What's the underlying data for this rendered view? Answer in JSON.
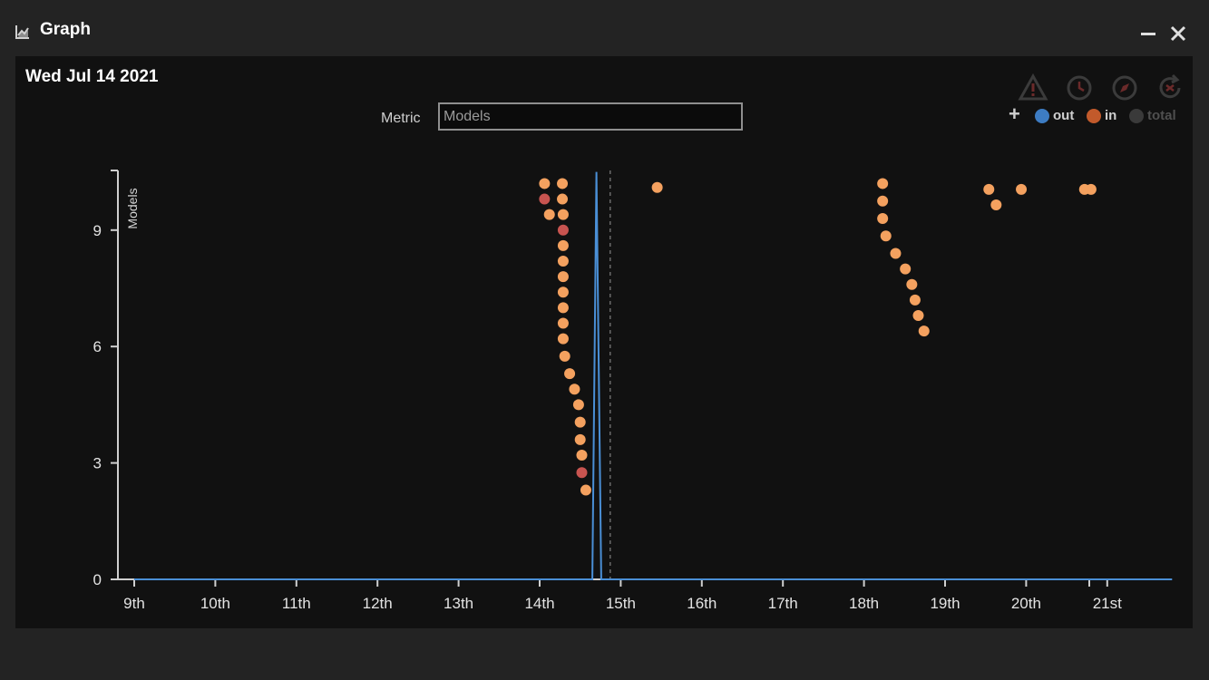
{
  "window": {
    "title": "Graph",
    "icons": [
      "chart-icon",
      "minimize-icon",
      "close-icon"
    ]
  },
  "header": {
    "date": "Wed Jul 14 2021",
    "metric_label": "Metric",
    "metric_value": "Models"
  },
  "toolbar": {
    "icons": [
      "warning-icon",
      "clock-refresh-icon",
      "compass-icon",
      "reload-icon"
    ]
  },
  "legend": {
    "add_symbol": "+",
    "items": [
      {
        "label": "out",
        "color": "#3d7cc3",
        "text_color": "#cfcfcf"
      },
      {
        "label": "in",
        "color": "#c25a2b",
        "text_color": "#cfcfcf"
      },
      {
        "label": "total",
        "color": "#4a4a4a",
        "text_color": "#4f4f4f"
      }
    ]
  },
  "colors": {
    "point": "#f4a15f",
    "point_alt": "#c85450",
    "line": "#4a8fd6",
    "axis": "#cfcfcf"
  },
  "chart_data": {
    "type": "scatter",
    "ylabel": "Models",
    "xlabel": "",
    "ylim": [
      0,
      10.5
    ],
    "xlim": [
      9.0,
      21.8
    ],
    "yticks": [
      0,
      3,
      6,
      9
    ],
    "xticks": [
      {
        "value": 9,
        "label": "9th"
      },
      {
        "value": 10,
        "label": "10th"
      },
      {
        "value": 11,
        "label": "11th"
      },
      {
        "value": 12,
        "label": "12th"
      },
      {
        "value": 13,
        "label": "13th"
      },
      {
        "value": 14,
        "label": "14th"
      },
      {
        "value": 15,
        "label": "15th"
      },
      {
        "value": 16,
        "label": "16th"
      },
      {
        "value": 17,
        "label": "17th"
      },
      {
        "value": 18,
        "label": "18th"
      },
      {
        "value": 19,
        "label": "19th"
      },
      {
        "value": 20,
        "label": "20th"
      },
      {
        "value": 21,
        "label": "21st"
      }
    ],
    "marker_x": 14.87,
    "series": [
      {
        "name": "out",
        "kind": "line",
        "x": [
          9.0,
          14.65,
          14.7,
          14.76,
          21.8
        ],
        "y": [
          0,
          0,
          10.5,
          0,
          0
        ]
      }
    ],
    "points": [
      {
        "x": 14.06,
        "y": 10.2,
        "c": "a"
      },
      {
        "x": 14.28,
        "y": 10.2,
        "c": "a"
      },
      {
        "x": 14.06,
        "y": 9.8,
        "c": "b"
      },
      {
        "x": 14.28,
        "y": 9.8,
        "c": "a"
      },
      {
        "x": 14.12,
        "y": 9.4,
        "c": "a"
      },
      {
        "x": 14.29,
        "y": 9.4,
        "c": "a"
      },
      {
        "x": 14.29,
        "y": 9.0,
        "c": "b"
      },
      {
        "x": 14.29,
        "y": 8.6,
        "c": "a"
      },
      {
        "x": 14.29,
        "y": 8.2,
        "c": "a"
      },
      {
        "x": 14.29,
        "y": 7.8,
        "c": "a"
      },
      {
        "x": 14.29,
        "y": 7.4,
        "c": "a"
      },
      {
        "x": 14.29,
        "y": 7.0,
        "c": "a"
      },
      {
        "x": 14.29,
        "y": 6.6,
        "c": "a"
      },
      {
        "x": 14.29,
        "y": 6.2,
        "c": "a"
      },
      {
        "x": 14.31,
        "y": 5.75,
        "c": "a"
      },
      {
        "x": 14.37,
        "y": 5.3,
        "c": "a"
      },
      {
        "x": 14.43,
        "y": 4.9,
        "c": "a"
      },
      {
        "x": 14.48,
        "y": 4.5,
        "c": "a"
      },
      {
        "x": 14.5,
        "y": 4.05,
        "c": "a"
      },
      {
        "x": 14.5,
        "y": 3.6,
        "c": "a"
      },
      {
        "x": 14.52,
        "y": 3.2,
        "c": "a"
      },
      {
        "x": 14.52,
        "y": 2.75,
        "c": "b"
      },
      {
        "x": 14.57,
        "y": 2.3,
        "c": "a"
      },
      {
        "x": 15.45,
        "y": 10.1,
        "c": "a"
      },
      {
        "x": 18.23,
        "y": 10.2,
        "c": "a"
      },
      {
        "x": 18.23,
        "y": 9.75,
        "c": "a"
      },
      {
        "x": 18.23,
        "y": 9.3,
        "c": "a"
      },
      {
        "x": 18.27,
        "y": 8.85,
        "c": "a"
      },
      {
        "x": 18.39,
        "y": 8.4,
        "c": "a"
      },
      {
        "x": 18.51,
        "y": 8.0,
        "c": "a"
      },
      {
        "x": 18.59,
        "y": 7.6,
        "c": "a"
      },
      {
        "x": 18.63,
        "y": 7.2,
        "c": "a"
      },
      {
        "x": 18.67,
        "y": 6.8,
        "c": "a"
      },
      {
        "x": 18.74,
        "y": 6.4,
        "c": "a"
      },
      {
        "x": 19.54,
        "y": 10.05,
        "c": "a"
      },
      {
        "x": 19.63,
        "y": 9.65,
        "c": "a"
      },
      {
        "x": 19.94,
        "y": 10.05,
        "c": "a"
      },
      {
        "x": 20.72,
        "y": 10.05,
        "c": "a"
      },
      {
        "x": 20.8,
        "y": 10.05,
        "c": "a"
      }
    ]
  }
}
